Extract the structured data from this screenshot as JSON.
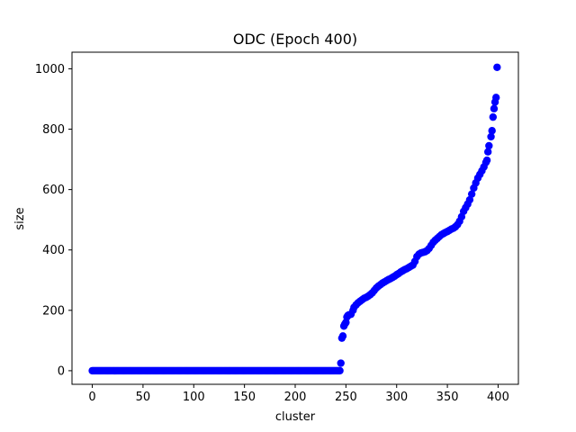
{
  "chart_data": {
    "type": "scatter",
    "title": "ODC (Epoch 400)",
    "xlabel": "cluster",
    "ylabel": "size",
    "xlim": [
      -20,
      420
    ],
    "ylim": [
      -45,
      1055
    ],
    "xticks": [
      0,
      50,
      100,
      150,
      200,
      250,
      300,
      350,
      400
    ],
    "yticks": [
      0,
      200,
      400,
      600,
      800,
      1000
    ],
    "grid": false,
    "legend": "none",
    "marker_color": "#0000ff",
    "series": [
      {
        "zero_clusters": {
          "x_start": 0,
          "x_end": 244,
          "size": 0
        },
        "points": [
          [
            245,
            25
          ],
          [
            246,
            108
          ],
          [
            247,
            115
          ],
          [
            248,
            148
          ],
          [
            249,
            155
          ],
          [
            250,
            160
          ],
          [
            251,
            178
          ],
          [
            252,
            183
          ],
          [
            253,
            185
          ],
          [
            255,
            187
          ],
          [
            257,
            200
          ],
          [
            258,
            210
          ],
          [
            260,
            218
          ],
          [
            262,
            225
          ],
          [
            264,
            230
          ],
          [
            266,
            235
          ],
          [
            268,
            240
          ],
          [
            270,
            243
          ],
          [
            272,
            247
          ],
          [
            274,
            252
          ],
          [
            276,
            258
          ],
          [
            278,
            266
          ],
          [
            280,
            274
          ],
          [
            282,
            280
          ],
          [
            284,
            285
          ],
          [
            286,
            290
          ],
          [
            288,
            294
          ],
          [
            290,
            298
          ],
          [
            292,
            302
          ],
          [
            294,
            305
          ],
          [
            296,
            309
          ],
          [
            298,
            313
          ],
          [
            300,
            318
          ],
          [
            302,
            322
          ],
          [
            304,
            327
          ],
          [
            306,
            331
          ],
          [
            308,
            335
          ],
          [
            310,
            338
          ],
          [
            312,
            342
          ],
          [
            314,
            346
          ],
          [
            316,
            350
          ],
          [
            318,
            362
          ],
          [
            320,
            378
          ],
          [
            322,
            386
          ],
          [
            324,
            390
          ],
          [
            326,
            392
          ],
          [
            328,
            394
          ],
          [
            330,
            398
          ],
          [
            332,
            405
          ],
          [
            334,
            415
          ],
          [
            336,
            425
          ],
          [
            338,
            432
          ],
          [
            340,
            438
          ],
          [
            342,
            444
          ],
          [
            344,
            450
          ],
          [
            346,
            454
          ],
          [
            348,
            458
          ],
          [
            350,
            461
          ],
          [
            352,
            465
          ],
          [
            354,
            469
          ],
          [
            356,
            472
          ],
          [
            358,
            477
          ],
          [
            360,
            484
          ],
          [
            362,
            495
          ],
          [
            364,
            510
          ],
          [
            366,
            528
          ],
          [
            368,
            540
          ],
          [
            370,
            552
          ],
          [
            372,
            566
          ],
          [
            374,
            585
          ],
          [
            376,
            605
          ],
          [
            378,
            622
          ],
          [
            380,
            638
          ],
          [
            382,
            650
          ],
          [
            384,
            662
          ],
          [
            386,
            675
          ],
          [
            388,
            690
          ],
          [
            389,
            697
          ],
          [
            390,
            725
          ],
          [
            391,
            745
          ],
          [
            393,
            775
          ],
          [
            394,
            795
          ],
          [
            395,
            840
          ],
          [
            396,
            868
          ],
          [
            397,
            890
          ],
          [
            398,
            905
          ],
          [
            399,
            1005
          ]
        ]
      }
    ]
  }
}
